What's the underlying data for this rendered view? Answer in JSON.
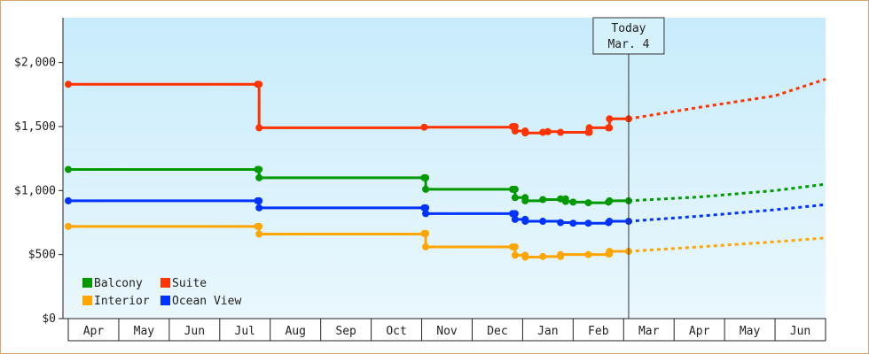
{
  "chart_data": {
    "type": "line",
    "title": "",
    "xlabel": "",
    "ylabel": "",
    "ylim": [
      0,
      2350
    ],
    "y_ticks": [
      {
        "value": 0,
        "label": "$0"
      },
      {
        "value": 500,
        "label": "$500"
      },
      {
        "value": 1000,
        "label": "$1,000"
      },
      {
        "value": 1500,
        "label": "$1,500"
      },
      {
        "value": 2000,
        "label": "$2,000"
      }
    ],
    "x_months": [
      "Apr",
      "May",
      "Jun",
      "Jul",
      "Aug",
      "Sep",
      "Oct",
      "Nov",
      "Dec",
      "Jan",
      "Feb",
      "Mar",
      "Apr",
      "May",
      "Jun"
    ],
    "xlim": [
      0,
      15
    ],
    "today": {
      "x": 11.1,
      "label_line1": "Today",
      "label_line2": "Mar. 4"
    },
    "grid": false,
    "legend_position": "bottom-left",
    "series": [
      {
        "name": "Suite",
        "color": "#ff3300",
        "points": [
          [
            0,
            1830
          ],
          [
            3.75,
            1830
          ],
          [
            3.78,
            1490
          ],
          [
            7.05,
            1495
          ],
          [
            8.8,
            1500
          ],
          [
            8.85,
            1465
          ],
          [
            9.05,
            1450
          ],
          [
            9.4,
            1455
          ],
          [
            9.5,
            1460
          ],
          [
            9.75,
            1455
          ],
          [
            10.3,
            1455
          ],
          [
            10.32,
            1490
          ],
          [
            10.7,
            1490
          ],
          [
            10.72,
            1560
          ],
          [
            11.1,
            1560
          ]
        ],
        "forecast": [
          [
            11.1,
            1560
          ],
          [
            12.5,
            1650
          ],
          [
            14,
            1740
          ],
          [
            15,
            1870
          ]
        ]
      },
      {
        "name": "Balcony",
        "color": "#009900",
        "points": [
          [
            0,
            1165
          ],
          [
            3.75,
            1165
          ],
          [
            3.78,
            1100
          ],
          [
            7.05,
            1100
          ],
          [
            7.08,
            1010
          ],
          [
            8.8,
            1010
          ],
          [
            8.85,
            945
          ],
          [
            9.05,
            920
          ],
          [
            9.4,
            930
          ],
          [
            9.75,
            935
          ],
          [
            9.85,
            915
          ],
          [
            10.0,
            910
          ],
          [
            10.3,
            905
          ],
          [
            10.7,
            910
          ],
          [
            10.72,
            920
          ],
          [
            11.1,
            920
          ]
        ],
        "forecast": [
          [
            11.1,
            920
          ],
          [
            12.5,
            950
          ],
          [
            14,
            1000
          ],
          [
            15,
            1050
          ]
        ]
      },
      {
        "name": "Ocean View",
        "color": "#0033ff",
        "points": [
          [
            0,
            920
          ],
          [
            3.75,
            920
          ],
          [
            3.78,
            865
          ],
          [
            7.05,
            865
          ],
          [
            7.08,
            820
          ],
          [
            8.8,
            820
          ],
          [
            8.85,
            775
          ],
          [
            9.05,
            760
          ],
          [
            9.4,
            760
          ],
          [
            9.75,
            750
          ],
          [
            10.0,
            745
          ],
          [
            10.3,
            745
          ],
          [
            10.7,
            750
          ],
          [
            10.72,
            760
          ],
          [
            11.1,
            760
          ]
        ],
        "forecast": [
          [
            11.1,
            760
          ],
          [
            12.5,
            800
          ],
          [
            14,
            850
          ],
          [
            15,
            890
          ]
        ]
      },
      {
        "name": "Interior",
        "color": "#ffa500",
        "points": [
          [
            0,
            720
          ],
          [
            3.75,
            720
          ],
          [
            3.78,
            660
          ],
          [
            7.05,
            665
          ],
          [
            7.08,
            560
          ],
          [
            8.8,
            560
          ],
          [
            8.85,
            495
          ],
          [
            9.05,
            480
          ],
          [
            9.4,
            485
          ],
          [
            9.75,
            500
          ],
          [
            10.3,
            500
          ],
          [
            10.7,
            505
          ],
          [
            10.72,
            525
          ],
          [
            11.1,
            525
          ]
        ],
        "forecast": [
          [
            11.1,
            525
          ],
          [
            12.5,
            560
          ],
          [
            14,
            600
          ],
          [
            15,
            630
          ]
        ]
      }
    ],
    "legend": [
      {
        "name": "Balcony",
        "color": "#009900"
      },
      {
        "name": "Suite",
        "color": "#ff3300"
      },
      {
        "name": "Interior",
        "color": "#ffa500"
      },
      {
        "name": "Ocean View",
        "color": "#0033ff"
      }
    ]
  }
}
